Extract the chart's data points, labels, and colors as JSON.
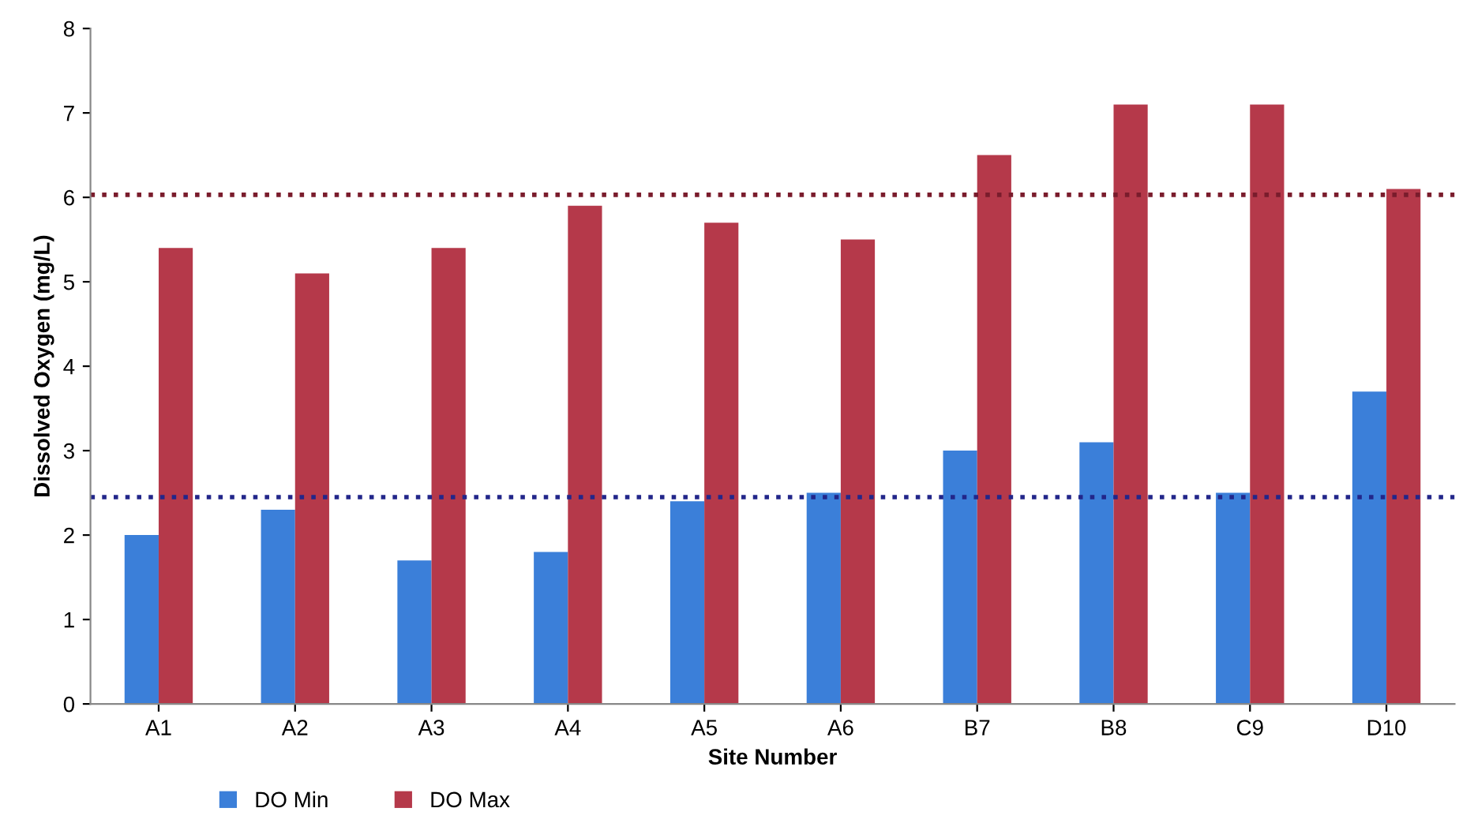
{
  "chart_data": {
    "type": "bar",
    "xlabel": "Site Number",
    "ylabel": "Dissolved Oxygen (mg/L)",
    "categories": [
      "A1",
      "A2",
      "A3",
      "A4",
      "A5",
      "A6",
      "B7",
      "B8",
      "C9",
      "D10"
    ],
    "series": [
      {
        "name": "DO Min",
        "color": "#3b7fd9",
        "values": [
          2.0,
          2.3,
          1.7,
          1.8,
          2.4,
          2.5,
          3.0,
          3.1,
          2.5,
          3.7
        ]
      },
      {
        "name": "DO Max",
        "color": "#b5394a",
        "values": [
          5.4,
          5.1,
          5.4,
          5.9,
          5.7,
          5.5,
          6.5,
          7.1,
          7.1,
          6.1
        ]
      }
    ],
    "ylim": [
      0,
      8
    ],
    "yticks": [
      0,
      1,
      2,
      3,
      4,
      5,
      6,
      7,
      8
    ],
    "grid": false,
    "legend": "bottom",
    "ref_lines": [
      {
        "axis": "y",
        "value": 6.03,
        "color": "#7a1c2c",
        "line_style": "dotted"
      },
      {
        "axis": "y",
        "value": 2.45,
        "color": "#22268a",
        "line_style": "dotted"
      }
    ]
  }
}
